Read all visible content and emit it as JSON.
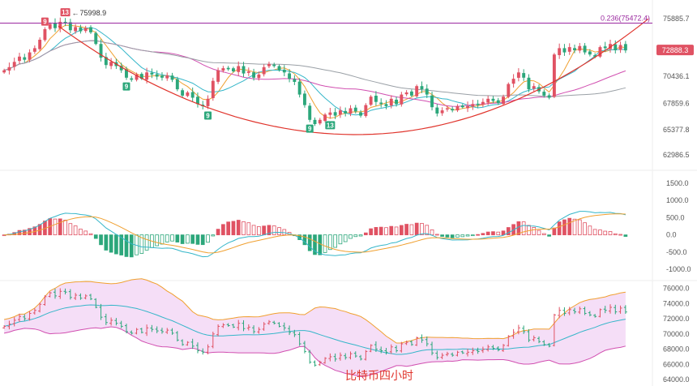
{
  "chart_data": [
    {
      "type": "candlestick",
      "panel": "price",
      "y_ticks": [
        "75885.7",
        "72888.3",
        "70436.1",
        "67859.6",
        "65377.8",
        "62986.5"
      ],
      "y_range": [
        61900,
        76900
      ],
      "last_price": "72888.3",
      "last_price_value": 72888.3,
      "peak_label": "75998.9",
      "fib_label": "0.236(75472.4)",
      "fib_level": 75472.4,
      "td_markers": [
        {
          "bar": 8,
          "text": "9",
          "side": "top",
          "color": "#e05263"
        },
        {
          "bar": 12,
          "text": "13",
          "side": "top",
          "color": "#e05263"
        },
        {
          "bar": 24,
          "text": "9",
          "side": "bottom",
          "color": "#2ca77b"
        },
        {
          "bar": 40,
          "text": "9",
          "side": "bottom",
          "color": "#2ca77b"
        },
        {
          "bar": 60,
          "text": "9",
          "side": "bottom",
          "color": "#2ca77b"
        },
        {
          "bar": 64,
          "text": "13",
          "side": "bottom",
          "color": "#2ca77b"
        }
      ],
      "closes": [
        71000,
        71300,
        71800,
        72300,
        72000,
        72700,
        73100,
        73900,
        74900,
        75400,
        75000,
        75600,
        75500,
        74800,
        75100,
        74700,
        75000,
        74600,
        73500,
        72200,
        71500,
        71800,
        71400,
        71000,
        70300,
        70100,
        70600,
        70200,
        70800,
        70600,
        70400,
        70300,
        70500,
        70100,
        69200,
        68600,
        68900,
        68400,
        67800,
        67600,
        68300,
        70000,
        71000,
        71200,
        71100,
        70900,
        71400,
        70700,
        70900,
        70300,
        70600,
        71300,
        71600,
        71400,
        71000,
        70800,
        70200,
        69900,
        68700,
        67700,
        66300,
        65900,
        66300,
        66800,
        67000,
        66700,
        67200,
        66900,
        67400,
        67100,
        66700,
        67700,
        68500,
        68000,
        67800,
        67600,
        68300,
        67800,
        68700,
        68900,
        68600,
        69500,
        69200,
        68700,
        67500,
        66900,
        67200,
        67400,
        67200,
        67600,
        67500,
        67600,
        67800,
        67700,
        68000,
        68300,
        68100,
        67900,
        68500,
        69700,
        70200,
        70800,
        70300,
        69200,
        69500,
        69000,
        68600,
        68400,
        72500,
        73100,
        72700,
        73200,
        72900,
        73300,
        72700,
        72500,
        72300,
        73200,
        73100,
        73500,
        72900,
        73400,
        72888
      ]
    },
    {
      "type": "macd",
      "panel": "macd",
      "y_ticks": [
        "1500.0",
        "1000.0",
        "500.0",
        "0.0",
        "-500.0",
        "-1000.0"
      ],
      "y_range": [
        -1300,
        1800
      ]
    },
    {
      "type": "bollinger",
      "panel": "bollinger",
      "y_ticks": [
        "76000.0",
        "74000.0",
        "72000.0",
        "70000.0",
        "68000.0",
        "66000.0",
        "64000.0"
      ],
      "y_range": [
        63800,
        76800
      ]
    }
  ],
  "caption": "比特币四小时",
  "colors": {
    "up": "#e05263",
    "down": "#2ca77b",
    "fib": "#9b2aa0",
    "arc": "#e0342c"
  }
}
